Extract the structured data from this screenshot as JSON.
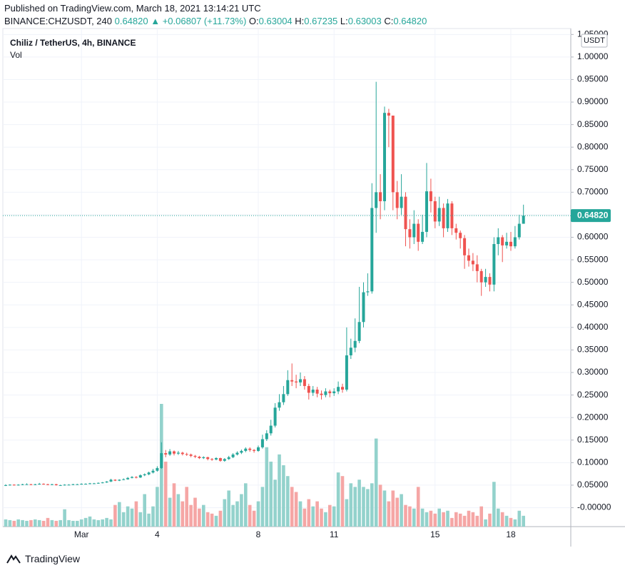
{
  "header": {
    "published": "Published on TradingView.com, March 18, 2021 13:14:21 UTC",
    "symbol": "BINANCE:CHZUSDT, 240",
    "last": "0.64820",
    "change": "▲ +0.06807 (+11.73%)",
    "o_label": "O:",
    "o": "0.63004",
    "h_label": "H:",
    "h": "0.67235",
    "l_label": "L:",
    "l": "0.63003",
    "c_label": "C:",
    "c": "0.64820"
  },
  "footer": {
    "brand": "TradingView"
  },
  "chart_data": {
    "type": "candlestick",
    "title": "Chiliz / TetherUS, 4h, BINANCE",
    "volume_label": "Vol",
    "y_axis_unit": "USDT",
    "up_color": "#26a69a",
    "down_color": "#ef5350",
    "volume_up_color": "#93d2cc",
    "volume_down_color": "#f5a6a5",
    "grid": true,
    "price_line": {
      "value": 0.6482,
      "label": "0.64820"
    },
    "ylim": [
      -0.042,
      1.06
    ],
    "yticks": [
      {
        "value": 0,
        "label": "-0.00000"
      },
      {
        "value": 0.05,
        "label": "0.05000"
      },
      {
        "value": 0.1,
        "label": "0.10000"
      },
      {
        "value": 0.15,
        "label": "0.15000"
      },
      {
        "value": 0.2,
        "label": "0.20000"
      },
      {
        "value": 0.25,
        "label": "0.25000"
      },
      {
        "value": 0.3,
        "label": "0.30000"
      },
      {
        "value": 0.35,
        "label": "0.35000"
      },
      {
        "value": 0.4,
        "label": "0.40000"
      },
      {
        "value": 0.45,
        "label": "0.45000"
      },
      {
        "value": 0.5,
        "label": "0.50000"
      },
      {
        "value": 0.55,
        "label": "0.55000"
      },
      {
        "value": 0.6,
        "label": "0.60000"
      },
      {
        "value": 0.65,
        "label": "0.65000"
      },
      {
        "value": 0.7,
        "label": "0.70000"
      },
      {
        "value": 0.75,
        "label": "0.75000"
      },
      {
        "value": 0.8,
        "label": "0.80000"
      },
      {
        "value": 0.85,
        "label": "0.85000"
      },
      {
        "value": 0.9,
        "label": "0.90000"
      },
      {
        "value": 0.95,
        "label": "0.95000"
      },
      {
        "value": 1,
        "label": "1.00000"
      },
      {
        "value": 1.05,
        "label": "1.05000"
      }
    ],
    "categories": [
      null,
      null,
      null,
      null,
      null,
      null,
      null,
      null,
      null,
      null,
      null,
      null,
      null,
      null,
      null,
      null,
      null,
      null,
      "Mar",
      null,
      null,
      null,
      null,
      null,
      null,
      null,
      null,
      null,
      null,
      null,
      null,
      null,
      null,
      null,
      null,
      null,
      "4",
      null,
      null,
      null,
      null,
      null,
      null,
      null,
      null,
      null,
      null,
      null,
      null,
      null,
      null,
      null,
      null,
      null,
      null,
      null,
      null,
      null,
      null,
      null,
      "8",
      null,
      null,
      null,
      null,
      null,
      null,
      null,
      null,
      null,
      null,
      null,
      null,
      null,
      null,
      null,
      null,
      null,
      "11",
      null,
      null,
      null,
      null,
      null,
      null,
      null,
      null,
      null,
      null,
      null,
      null,
      null,
      null,
      null,
      null,
      null,
      null,
      null,
      null,
      null,
      null,
      null,
      "15",
      null,
      null,
      null,
      null,
      null,
      null,
      null,
      null,
      null,
      null,
      null,
      null,
      null,
      null,
      null,
      null,
      null,
      "18",
      null,
      null,
      null
    ],
    "open": [
      0.049,
      0.05,
      0.051,
      0.05,
      0.051,
      0.052,
      0.052,
      0.051,
      0.052,
      0.053,
      0.052,
      0.051,
      0.052,
      0.05,
      0.05,
      0.051,
      0.051,
      0.052,
      0.052,
      0.053,
      0.053,
      0.054,
      0.054,
      0.055,
      0.056,
      0.058,
      0.062,
      0.06,
      0.062,
      0.063,
      0.066,
      0.068,
      0.067,
      0.072,
      0.074,
      0.078,
      0.082,
      0.088,
      0.121,
      0.118,
      0.125,
      0.12,
      0.122,
      0.119,
      0.118,
      0.115,
      0.113,
      0.11,
      0.112,
      0.108,
      0.107,
      0.11,
      0.104,
      0.108,
      0.112,
      0.118,
      0.122,
      0.126,
      0.131,
      0.128,
      0.126,
      0.134,
      0.152,
      0.165,
      0.182,
      0.222,
      0.234,
      0.252,
      0.283,
      0.28,
      0.278,
      0.285,
      0.27,
      0.255,
      0.262,
      0.253,
      0.25,
      0.258,
      0.254,
      0.258,
      0.268,
      0.262,
      0.338,
      0.355,
      0.37,
      0.412,
      0.478,
      0.48,
      0.665,
      0.7,
      0.68,
      0.876,
      0.87,
      0.7,
      0.665,
      0.69,
      0.618,
      0.6,
      0.63,
      0.59,
      0.612,
      0.702,
      0.68,
      0.635,
      0.665,
      0.62,
      0.675,
      0.62,
      0.61,
      0.598,
      0.56,
      0.548,
      0.54,
      0.525,
      0.5,
      0.512,
      0.495,
      0.585,
      0.6,
      0.582,
      0.59,
      0.58,
      0.6,
      0.63004
    ],
    "high": [
      0.052,
      0.052,
      0.052,
      0.052,
      0.053,
      0.054,
      0.053,
      0.053,
      0.055,
      0.054,
      0.053,
      0.053,
      0.053,
      0.051,
      0.052,
      0.052,
      0.053,
      0.053,
      0.054,
      0.054,
      0.055,
      0.055,
      0.056,
      0.057,
      0.059,
      0.064,
      0.063,
      0.063,
      0.065,
      0.068,
      0.07,
      0.07,
      0.074,
      0.076,
      0.08,
      0.086,
      0.092,
      0.145,
      0.128,
      0.13,
      0.127,
      0.126,
      0.124,
      0.122,
      0.12,
      0.117,
      0.115,
      0.114,
      0.113,
      0.11,
      0.112,
      0.111,
      0.11,
      0.115,
      0.121,
      0.125,
      0.129,
      0.134,
      0.134,
      0.13,
      0.138,
      0.162,
      0.172,
      0.195,
      0.232,
      0.252,
      0.27,
      0.305,
      0.32,
      0.295,
      0.3,
      0.292,
      0.275,
      0.27,
      0.268,
      0.26,
      0.265,
      0.262,
      0.265,
      0.28,
      0.275,
      0.4,
      0.375,
      0.42,
      0.49,
      0.5,
      0.52,
      0.72,
      0.945,
      0.74,
      0.89,
      0.885,
      0.87,
      0.725,
      0.74,
      0.7,
      0.64,
      0.66,
      0.64,
      0.65,
      0.765,
      0.73,
      0.69,
      0.69,
      0.675,
      0.685,
      0.68,
      0.63,
      0.615,
      0.605,
      0.575,
      0.565,
      0.56,
      0.53,
      0.53,
      0.52,
      0.6,
      0.62,
      0.605,
      0.61,
      0.612,
      0.625,
      0.65,
      0.67235
    ],
    "low": [
      0.048,
      0.049,
      0.049,
      0.049,
      0.05,
      0.051,
      0.05,
      0.05,
      0.051,
      0.051,
      0.05,
      0.05,
      0.049,
      0.049,
      0.049,
      0.05,
      0.05,
      0.051,
      0.051,
      0.052,
      0.052,
      0.053,
      0.053,
      0.054,
      0.055,
      0.057,
      0.059,
      0.059,
      0.061,
      0.062,
      0.065,
      0.065,
      0.066,
      0.07,
      0.072,
      0.076,
      0.08,
      0.086,
      0.112,
      0.115,
      0.116,
      0.117,
      0.116,
      0.115,
      0.112,
      0.11,
      0.108,
      0.108,
      0.105,
      0.104,
      0.105,
      0.102,
      0.102,
      0.106,
      0.11,
      0.116,
      0.119,
      0.123,
      0.124,
      0.122,
      0.124,
      0.131,
      0.148,
      0.16,
      0.178,
      0.215,
      0.228,
      0.248,
      0.27,
      0.265,
      0.27,
      0.262,
      0.24,
      0.248,
      0.245,
      0.24,
      0.245,
      0.245,
      0.248,
      0.252,
      0.255,
      0.258,
      0.33,
      0.345,
      0.365,
      0.4,
      0.47,
      0.475,
      0.61,
      0.64,
      0.66,
      0.8,
      0.66,
      0.64,
      0.65,
      0.58,
      0.575,
      0.585,
      0.57,
      0.585,
      0.6,
      0.655,
      0.62,
      0.625,
      0.6,
      0.612,
      0.605,
      0.595,
      0.575,
      0.53,
      0.535,
      0.525,
      0.5,
      0.47,
      0.49,
      0.48,
      0.48,
      0.56,
      0.545,
      0.575,
      0.57,
      0.575,
      0.595,
      0.63003
    ],
    "close": [
      0.05,
      0.051,
      0.05,
      0.051,
      0.052,
      0.052,
      0.051,
      0.052,
      0.053,
      0.052,
      0.051,
      0.052,
      0.05,
      0.05,
      0.051,
      0.051,
      0.052,
      0.052,
      0.053,
      0.053,
      0.054,
      0.054,
      0.055,
      0.056,
      0.058,
      0.062,
      0.06,
      0.062,
      0.063,
      0.066,
      0.068,
      0.067,
      0.072,
      0.074,
      0.078,
      0.082,
      0.088,
      0.121,
      0.118,
      0.125,
      0.12,
      0.122,
      0.119,
      0.118,
      0.115,
      0.113,
      0.11,
      0.112,
      0.108,
      0.107,
      0.11,
      0.104,
      0.108,
      0.112,
      0.118,
      0.122,
      0.126,
      0.131,
      0.128,
      0.126,
      0.134,
      0.152,
      0.165,
      0.182,
      0.222,
      0.234,
      0.252,
      0.283,
      0.28,
      0.278,
      0.285,
      0.27,
      0.255,
      0.262,
      0.253,
      0.25,
      0.258,
      0.254,
      0.258,
      0.268,
      0.262,
      0.338,
      0.355,
      0.37,
      0.412,
      0.478,
      0.48,
      0.665,
      0.7,
      0.68,
      0.876,
      0.87,
      0.7,
      0.665,
      0.69,
      0.618,
      0.6,
      0.63,
      0.59,
      0.612,
      0.702,
      0.68,
      0.635,
      0.665,
      0.62,
      0.675,
      0.62,
      0.61,
      0.598,
      0.56,
      0.548,
      0.54,
      0.525,
      0.5,
      0.512,
      0.495,
      0.585,
      0.6,
      0.582,
      0.59,
      0.58,
      0.6,
      0.63,
      0.6482
    ],
    "volume": [
      10,
      9,
      8,
      10,
      9,
      8,
      9,
      10,
      9,
      8,
      12,
      9,
      8,
      9,
      24,
      9,
      8,
      8,
      10,
      12,
      14,
      10,
      9,
      10,
      12,
      10,
      30,
      34,
      20,
      28,
      25,
      35,
      20,
      45,
      18,
      28,
      55,
      170,
      90,
      40,
      60,
      45,
      35,
      55,
      30,
      40,
      25,
      30,
      20,
      18,
      15,
      22,
      38,
      50,
      30,
      35,
      45,
      60,
      30,
      22,
      35,
      55,
      110,
      90,
      65,
      100,
      85,
      70,
      55,
      48,
      35,
      25,
      38,
      28,
      35,
      25,
      20,
      30,
      28,
      75,
      70,
      38,
      60,
      55,
      65,
      55,
      52,
      60,
      122,
      58,
      50,
      35,
      50,
      40,
      45,
      30,
      28,
      25,
      55,
      25,
      20,
      22,
      18,
      25,
      20,
      22,
      12,
      20,
      18,
      15,
      22,
      20,
      15,
      28,
      10,
      18,
      62,
      25,
      20,
      15,
      12,
      10,
      22,
      15
    ]
  }
}
